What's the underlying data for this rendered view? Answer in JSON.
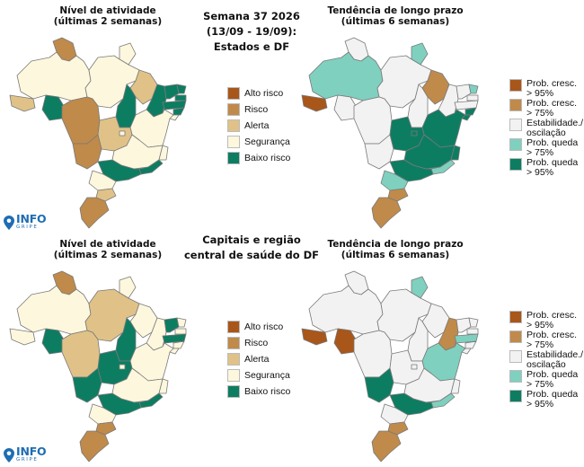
{
  "center_header": {
    "line1": "Semana 37 2026",
    "line2": "(13/09 - 19/09):",
    "line3": "Estados e DF"
  },
  "center_header_bottom": {
    "line1": "Capitais e região",
    "line2": "central de saúde do DF"
  },
  "panels": {
    "top_left": {
      "title1": "Nível de atividade",
      "title2": "(últimas 2 semanas)"
    },
    "top_right": {
      "title1": "Tendência de longo prazo",
      "title2": "(últimas 6 semanas)"
    },
    "bottom_left": {
      "title1": "Nível de atividade",
      "title2": "(últimas 2 semanas)"
    },
    "bottom_right": {
      "title1": "Tendência de longo prazo",
      "title2": "(últimas 6 semanas)"
    }
  },
  "activity_legend": [
    {
      "label": "Alto risco",
      "color": "#a8561a"
    },
    {
      "label": "Risco",
      "color": "#c08a4a"
    },
    {
      "label": "Alerta",
      "color": "#e0c288"
    },
    {
      "label": "Segurança",
      "color": "#fdf7dd"
    },
    {
      "label": "Baixo risco",
      "color": "#0d7d62"
    }
  ],
  "trend_legend": [
    {
      "line1": "Prob. cresc.",
      "line2": "> 95%",
      "color": "#a8561a"
    },
    {
      "line1": "Prob. cresc.",
      "line2": "> 75%",
      "color": "#c08a4a"
    },
    {
      "line1": "Estabilidade./",
      "line2": "oscilação",
      "color": "#f2f2f2"
    },
    {
      "line1": "Prob. queda",
      "line2": "> 75%",
      "color": "#7fd0bf"
    },
    {
      "line1": "Prob. queda",
      "line2": "> 95%",
      "color": "#0d7d62"
    }
  ],
  "logo": {
    "text": "INFO",
    "subtext": "GRIPE",
    "color": "#1f6db3"
  },
  "maps": {
    "top_left": {
      "AM": "#fdf7dd",
      "RR": "#c08a4a",
      "AP": "#fdf7dd",
      "PA": "#fdf7dd",
      "AC": "#e0c288",
      "RO": "#0d7d62",
      "MT": "#c08a4a",
      "TO": "#0d7d62",
      "MA": "#e0c288",
      "PI": "#0d7d62",
      "CE": "#0d7d62",
      "RN": "#0d7d62",
      "PB": "#0d7d62",
      "PE": "#0d7d62",
      "AL": "#0d7d62",
      "SE": "#fdf7dd",
      "BA": "#fdf7dd",
      "GO": "#e0c288",
      "DF": "#fdf7dd",
      "MS": "#c08a4a",
      "MG": "#fdf7dd",
      "ES": "#fdf7dd",
      "RJ": "#0d7d62",
      "SP": "#0d7d62",
      "PR": "#fdf7dd",
      "SC": "#e0c288",
      "RS": "#c08a4a"
    },
    "top_right": {
      "AM": "#7fd0bf",
      "RR": "#f2f2f2",
      "AP": "#7fd0bf",
      "PA": "#f2f2f2",
      "AC": "#a8561a",
      "RO": "#f2f2f2",
      "MT": "#f2f2f2",
      "TO": "#f2f2f2",
      "MA": "#c08a4a",
      "PI": "#f2f2f2",
      "CE": "#f2f2f2",
      "RN": "#7fd0bf",
      "PB": "#f2f2f2",
      "PE": "#f2f2f2",
      "AL": "#0d7d62",
      "SE": "#0d7d62",
      "BA": "#0d7d62",
      "GO": "#0d7d62",
      "DF": "#0d7d62",
      "MS": "#f2f2f2",
      "MG": "#0d7d62",
      "ES": "#0d7d62",
      "RJ": "#7fd0bf",
      "SP": "#0d7d62",
      "PR": "#7fd0bf",
      "SC": "#c08a4a",
      "RS": "#c08a4a"
    },
    "bottom_left": {
      "AM": "#fdf7dd",
      "RR": "#c08a4a",
      "AP": "#fdf7dd",
      "PA": "#e0c288",
      "AC": "#fdf7dd",
      "RO": "#0d7d62",
      "MT": "#e0c288",
      "TO": "#0d7d62",
      "MA": "#fdf7dd",
      "PI": "#fdf7dd",
      "CE": "#0d7d62",
      "RN": "#fdf7dd",
      "PB": "#fdf7dd",
      "PE": "#0d7d62",
      "AL": "#fdf7dd",
      "SE": "#fdf7dd",
      "BA": "#fdf7dd",
      "GO": "#0d7d62",
      "DF": "#fdf7dd",
      "MS": "#0d7d62",
      "MG": "#fdf7dd",
      "ES": "#fdf7dd",
      "RJ": "#0d7d62",
      "SP": "#0d7d62",
      "PR": "#fdf7dd",
      "SC": "#c08a4a",
      "RS": "#c08a4a"
    },
    "bottom_right": {
      "AM": "#f2f2f2",
      "RR": "#f2f2f2",
      "AP": "#7fd0bf",
      "PA": "#f2f2f2",
      "AC": "#a8561a",
      "RO": "#a8561a",
      "MT": "#f2f2f2",
      "TO": "#f2f2f2",
      "MA": "#f2f2f2",
      "PI": "#c08a4a",
      "CE": "#f2f2f2",
      "RN": "#f2f2f2",
      "PB": "#f2f2f2",
      "PE": "#7fd0bf",
      "AL": "#f2f2f2",
      "SE": "#f2f2f2",
      "BA": "#7fd0bf",
      "GO": "#f2f2f2",
      "DF": "#f2f2f2",
      "MS": "#0d7d62",
      "MG": "#f2f2f2",
      "ES": "#f2f2f2",
      "RJ": "#7fd0bf",
      "SP": "#0d7d62",
      "PR": "#f2f2f2",
      "SC": "#c08a4a",
      "RS": "#c08a4a"
    }
  }
}
